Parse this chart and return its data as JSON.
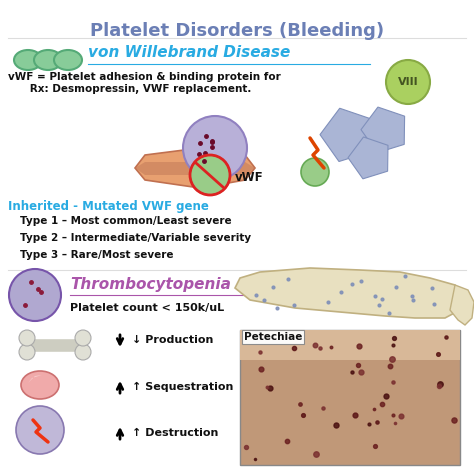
{
  "title": "Platelet Disorders (Bleeding)",
  "title_color": "#6b7fb5",
  "title_fontsize": 13,
  "bg_color": "#ffffff",
  "section1_header": "von Willebrand Disease",
  "section1_header_color": "#29abe2",
  "section1_text1": "vWF = Platelet adhesion & binding protein for",
  "section1_text2": "      Rx: Desmopressin, VWF replacement.",
  "section1_text_color": "#111111",
  "section1_text_fontsize": 7.5,
  "inherited_label": "Inherited - Mutated VWF gene",
  "inherited_color": "#29abe2",
  "inherited_fontsize": 8.5,
  "type1": "Type 1 – Most common/Least severe",
  "type2": "Type 2 – Intermediate/Variable severity",
  "type3": "Type 3 – Rare/Most severe",
  "types_color": "#111111",
  "types_fontsize": 7.5,
  "section2_header": "Thrombocytopenia",
  "section2_header_color": "#aa55aa",
  "section2_text": "Platelet count < 150k/uL",
  "section2_text_color": "#111111",
  "production_text": "↓ Production",
  "sequestration_text": "↑ Sequestration",
  "destruction_text": "↑ Destruction",
  "petechiae_label": "Petechiae",
  "bullet_fontsize": 8.0,
  "platelet_circles_color": "#88cc99",
  "viii_circle_color": "#aad060",
  "viii_text_color": "#445522",
  "vwf_label": "vWF",
  "thromb_circle_color": "#b0a8d0",
  "divider_color": "#dddddd"
}
